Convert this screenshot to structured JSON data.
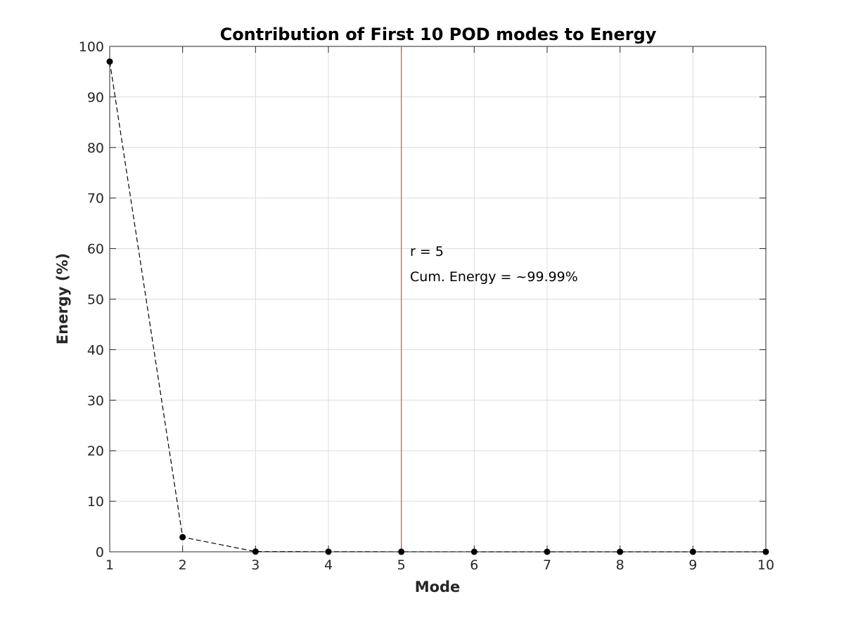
{
  "chart_data": {
    "type": "line",
    "title": "Contribution of First 10 POD modes to Energy",
    "xlabel": "Mode",
    "ylabel": "Energy (%)",
    "xlim": [
      1,
      10
    ],
    "ylim": [
      0,
      100
    ],
    "x_ticks": [
      1,
      2,
      3,
      4,
      5,
      6,
      7,
      8,
      9,
      10
    ],
    "y_ticks": [
      0,
      10,
      20,
      30,
      40,
      50,
      60,
      70,
      80,
      90,
      100
    ],
    "grid": true,
    "series": [
      {
        "x": [
          1,
          2,
          3,
          4,
          5,
          6,
          7,
          8,
          9,
          10
        ],
        "values": [
          97.0,
          2.9,
          0.05,
          0.02,
          0.01,
          0.005,
          0.003,
          0.002,
          0.001,
          0.001
        ],
        "color": "#000000",
        "line_style": "dashed",
        "marker": "filled-circle"
      }
    ],
    "reference_line": {
      "axis": "x",
      "value": 5,
      "color": "#d9534f"
    },
    "annotations": [
      {
        "text": "r = 5",
        "x": 5.1,
        "y": 59.5
      },
      {
        "text": "Cum. Energy = ~99.99%",
        "x": 5.1,
        "y": 54.5
      }
    ]
  }
}
